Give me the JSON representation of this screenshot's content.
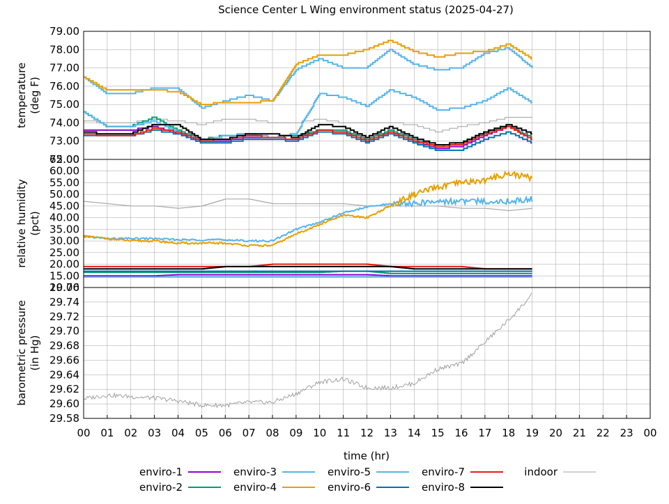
{
  "chart_data": {
    "type": "line",
    "title": "Science Center L Wing environment status (2025-04-27)",
    "xlabel": "time (hr)",
    "xlim": [
      0,
      24
    ],
    "x_ticks": [
      "00",
      "01",
      "02",
      "03",
      "04",
      "05",
      "06",
      "07",
      "08",
      "09",
      "10",
      "11",
      "12",
      "13",
      "14",
      "15",
      "16",
      "17",
      "18",
      "19",
      "20",
      "21",
      "22",
      "23",
      "00"
    ],
    "series_meta": [
      {
        "name": "enviro-1",
        "color": "#9400d3"
      },
      {
        "name": "enviro-2",
        "color": "#009e73"
      },
      {
        "name": "enviro-3",
        "color": "#56b4e9"
      },
      {
        "name": "enviro-4",
        "color": "#e69f00"
      },
      {
        "name": "enviro-5",
        "color": "#56b4e9"
      },
      {
        "name": "enviro-6",
        "color": "#0072b2"
      },
      {
        "name": "enviro-7",
        "color": "#e51e10"
      },
      {
        "name": "enviro-8",
        "color": "#000000"
      },
      {
        "name": "indoor",
        "color": "#a0a0a0"
      }
    ],
    "panels": [
      {
        "ylabel_lines": [
          "temperature",
          "(deg F)"
        ],
        "ylim": [
          72.0,
          79.0
        ],
        "y_ticks": [
          "72.00",
          "73.00",
          "74.00",
          "75.00",
          "76.00",
          "77.00",
          "78.00",
          "79.00"
        ],
        "hours": [
          0,
          1,
          2,
          3,
          4,
          5,
          6,
          7,
          8,
          9,
          10,
          11,
          12,
          13,
          14,
          15,
          16,
          17,
          18,
          19
        ],
        "series": [
          {
            "name": "enviro-1",
            "values": [
              73.6,
              73.6,
              73.6,
              73.8,
              73.4,
              73.0,
              73.0,
              73.2,
              73.2,
              73.1,
              73.6,
              73.5,
              73.0,
              73.5,
              73.0,
              72.6,
              72.7,
              73.3,
              73.8,
              73.1
            ]
          },
          {
            "name": "enviro-2",
            "values": [
              74.6,
              73.8,
              73.8,
              74.3,
              73.6,
              73.1,
              73.3,
              73.3,
              73.2,
              73.3,
              73.6,
              73.6,
              73.1,
              73.6,
              73.1,
              72.7,
              72.9,
              73.5,
              73.8,
              73.2
            ]
          },
          {
            "name": "enviro-3",
            "values": [
              76.5,
              75.6,
              75.6,
              75.9,
              75.9,
              74.8,
              75.2,
              75.5,
              75.2,
              76.9,
              77.5,
              77.0,
              77.0,
              78.0,
              77.2,
              76.9,
              77.0,
              77.8,
              78.1,
              77.0
            ]
          },
          {
            "name": "enviro-4",
            "values": [
              76.5,
              75.8,
              75.8,
              75.8,
              75.7,
              75.0,
              75.1,
              75.1,
              75.2,
              77.2,
              77.7,
              77.7,
              78.0,
              78.5,
              77.9,
              77.6,
              77.8,
              77.9,
              78.3,
              77.5
            ]
          },
          {
            "name": "enviro-5",
            "values": [
              74.6,
              73.8,
              73.8,
              74.1,
              73.5,
              73.0,
              73.3,
              73.4,
              73.2,
              73.4,
              75.6,
              75.4,
              74.9,
              75.8,
              75.4,
              74.7,
              74.8,
              75.2,
              75.9,
              75.1
            ]
          },
          {
            "name": "enviro-6",
            "values": [
              73.3,
              73.3,
              73.3,
              73.6,
              73.4,
              72.9,
              72.9,
              73.1,
              73.1,
              73.0,
              73.5,
              73.4,
              72.9,
              73.4,
              72.9,
              72.5,
              72.5,
              73.1,
              73.5,
              72.9
            ]
          },
          {
            "name": "enviro-7",
            "values": [
              73.4,
              73.3,
              73.3,
              73.7,
              73.5,
              73.0,
              73.1,
              73.3,
              73.2,
              73.1,
              73.6,
              73.5,
              73.0,
              73.5,
              73.0,
              72.7,
              72.8,
              73.4,
              73.8,
              73.1
            ]
          },
          {
            "name": "enviro-8",
            "values": [
              73.5,
              73.4,
              73.4,
              73.9,
              73.9,
              73.1,
              73.1,
              73.4,
              73.4,
              73.2,
              73.9,
              73.8,
              73.2,
              73.8,
              73.2,
              72.8,
              72.9,
              73.5,
              73.9,
              73.4
            ]
          },
          {
            "name": "indoor",
            "values": [
              74.1,
              74.0,
              74.0,
              74.2,
              74.1,
              73.9,
              74.2,
              74.2,
              74.0,
              74.0,
              74.2,
              74.0,
              74.0,
              74.0,
              73.9,
              73.5,
              73.8,
              74.0,
              74.3,
              74.3
            ]
          }
        ]
      },
      {
        "ylabel_lines": [
          "relative humidity",
          "(pct)"
        ],
        "ylim": [
          10.0,
          65.0
        ],
        "y_ticks": [
          "10.00",
          "15.00",
          "20.00",
          "25.00",
          "30.00",
          "35.00",
          "40.00",
          "45.00",
          "50.00",
          "55.00",
          "60.00",
          "65.00"
        ],
        "hours": [
          0,
          1,
          2,
          3,
          4,
          5,
          6,
          7,
          8,
          9,
          10,
          11,
          12,
          13,
          14,
          15,
          16,
          17,
          18,
          19
        ],
        "series": [
          {
            "name": "enviro-1",
            "values": [
              15.0,
              15.0,
              15.0,
              15.0,
              15.5,
              15.5,
              15.5,
              15.5,
              15.5,
              15.5,
              15.5,
              15.5,
              15.5,
              15.0,
              15.0,
              15.0,
              15.0,
              15.0,
              15.0,
              15.0
            ]
          },
          {
            "name": "enviro-2",
            "values": [
              16.5,
              16.5,
              16.5,
              16.5,
              16.5,
              16.5,
              16.5,
              16.5,
              16.5,
              16.5,
              16.5,
              17.0,
              17.0,
              16.0,
              16.0,
              16.0,
              16.0,
              16.0,
              16.0,
              16.0
            ]
          },
          {
            "name": "enviro-3",
            "values": [
              32.0,
              31.0,
              31.0,
              31.0,
              30.5,
              30.5,
              30.5,
              30.0,
              30.0,
              35.0,
              38.0,
              42.0,
              44.5,
              46.0,
              46.0,
              47.0,
              47.0,
              47.0,
              47.0,
              48.0
            ]
          },
          {
            "name": "enviro-4",
            "values": [
              32.0,
              31.0,
              30.0,
              30.0,
              29.0,
              29.0,
              29.0,
              28.0,
              28.0,
              33.0,
              37.0,
              41.0,
              40.0,
              45.0,
              50.0,
              53.0,
              55.0,
              56.0,
              59.0,
              57.0
            ]
          },
          {
            "name": "enviro-5",
            "values": [
              14.5,
              14.5,
              14.5,
              14.5,
              14.5,
              14.5,
              14.5,
              14.5,
              14.5,
              14.5,
              14.5,
              14.5,
              14.5,
              14.5,
              14.5,
              14.5,
              14.5,
              14.5,
              14.5,
              14.5
            ]
          },
          {
            "name": "enviro-6",
            "values": [
              17.0,
              17.0,
              17.0,
              17.0,
              17.0,
              17.0,
              17.0,
              17.0,
              17.0,
              17.0,
              17.0,
              17.0,
              17.0,
              17.0,
              17.0,
              17.0,
              17.0,
              17.0,
              17.0,
              17.0
            ]
          },
          {
            "name": "enviro-7",
            "values": [
              19.0,
              19.0,
              19.0,
              19.0,
              19.0,
              19.0,
              19.0,
              19.0,
              20.0,
              20.0,
              20.0,
              20.0,
              20.0,
              19.0,
              19.0,
              19.0,
              19.0,
              18.0,
              18.0,
              18.0
            ]
          },
          {
            "name": "enviro-8",
            "values": [
              18.0,
              18.0,
              18.0,
              18.0,
              18.0,
              18.0,
              19.0,
              19.0,
              19.0,
              19.0,
              19.0,
              19.0,
              19.0,
              19.0,
              18.0,
              18.0,
              18.0,
              18.0,
              18.0,
              18.0
            ]
          },
          {
            "name": "indoor",
            "values": [
              47.0,
              46.0,
              45.0,
              45.0,
              44.0,
              45.0,
              48.0,
              48.0,
              46.0,
              46.0,
              46.0,
              46.0,
              45.0,
              45.0,
              45.0,
              45.0,
              44.0,
              44.0,
              43.0,
              44.0
            ]
          }
        ]
      },
      {
        "ylabel_lines": [
          "barometric pressure",
          "(in Hg)"
        ],
        "ylim": [
          29.58,
          29.76
        ],
        "y_ticks": [
          "29.58",
          "29.60",
          "29.62",
          "29.64",
          "29.66",
          "29.68",
          "29.70",
          "29.72",
          "29.74",
          "29.76"
        ],
        "hours": [
          0,
          1,
          2,
          3,
          4,
          5,
          6,
          7,
          8,
          9,
          10,
          11,
          12,
          13,
          14,
          15,
          16,
          17,
          18,
          19
        ],
        "series": [
          {
            "name": "indoor",
            "values": [
              29.607,
              29.612,
              29.61,
              29.608,
              29.604,
              29.598,
              29.598,
              29.602,
              29.602,
              29.614,
              29.63,
              29.634,
              29.622,
              29.622,
              29.628,
              29.648,
              29.655,
              29.685,
              29.715,
              29.75
            ]
          }
        ]
      }
    ],
    "legend": [
      {
        "label": "enviro-1",
        "series": "enviro-1"
      },
      {
        "label": "enviro-2",
        "series": "enviro-2"
      },
      {
        "label": "enviro-3",
        "series": "enviro-3"
      },
      {
        "label": "enviro-4",
        "series": "enviro-4"
      },
      {
        "label": "enviro-5",
        "series": "enviro-5"
      },
      {
        "label": "enviro-6",
        "series": "enviro-6"
      },
      {
        "label": "enviro-7",
        "series": "enviro-7"
      },
      {
        "label": "enviro-8",
        "series": "enviro-8"
      },
      {
        "label": "indoor",
        "series": "indoor"
      }
    ]
  }
}
